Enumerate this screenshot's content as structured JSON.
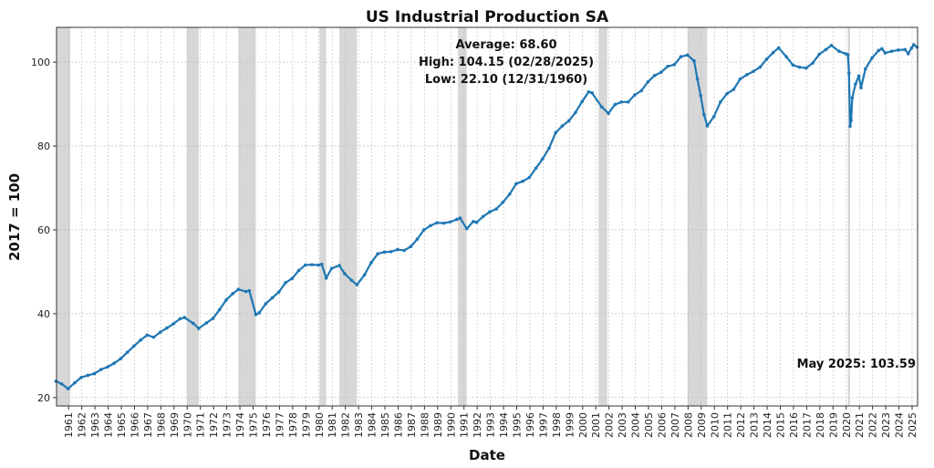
{
  "chart_data": {
    "type": "line",
    "title": "US Industrial Production SA",
    "xlabel": "Date",
    "ylabel": "2017 = 100",
    "xlim": [
      "1960-02",
      "2025-05"
    ],
    "ylim": [
      18.0,
      108.3
    ],
    "grid": true,
    "line_color": "#1f77b4",
    "recession_color": "#d3d3d3",
    "y_ticks": [
      20,
      40,
      60,
      80,
      100
    ],
    "x_ticks": [
      "1961",
      "1962",
      "1963",
      "1964",
      "1965",
      "1966",
      "1967",
      "1968",
      "1969",
      "1970",
      "1971",
      "1972",
      "1973",
      "1974",
      "1975",
      "1976",
      "1977",
      "1978",
      "1979",
      "1980",
      "1981",
      "1982",
      "1983",
      "1984",
      "1985",
      "1986",
      "1987",
      "1988",
      "1989",
      "1990",
      "1991",
      "1992",
      "1993",
      "1994",
      "1995",
      "1996",
      "1997",
      "1998",
      "1999",
      "2000",
      "2001",
      "2002",
      "2003",
      "2004",
      "2005",
      "2006",
      "2007",
      "2008",
      "2009",
      "2010",
      "2011",
      "2012",
      "2013",
      "2014",
      "2015",
      "2016",
      "2017",
      "2018",
      "2019",
      "2020",
      "2021",
      "2022",
      "2023",
      "2024",
      "2025"
    ],
    "annotations": {
      "average": "Average: 68.60",
      "high": "High: 104.15 (02/28/2025)",
      "low": "Low: 22.10 (12/31/1960)",
      "latest": "May 2025: 103.59"
    },
    "recessions": [
      [
        "1960-02",
        "1961-02"
      ],
      [
        "1969-12",
        "1970-11"
      ],
      [
        "1973-11",
        "1975-03"
      ],
      [
        "1980-01",
        "1980-07"
      ],
      [
        "1981-07",
        "1982-11"
      ],
      [
        "1990-07",
        "1991-03"
      ],
      [
        "2001-03",
        "2001-11"
      ],
      [
        "2007-12",
        "2009-06"
      ],
      [
        "2020-02",
        "2020-04"
      ]
    ],
    "series": [
      {
        "x": [
          "1960-01",
          "1960-06",
          "1960-12",
          "1961-06",
          "1961-12",
          "1962-06",
          "1962-12",
          "1963-06",
          "1963-12",
          "1964-06",
          "1964-12",
          "1965-06",
          "1965-12",
          "1966-06",
          "1966-12",
          "1967-06",
          "1967-12",
          "1968-06",
          "1968-12",
          "1969-06",
          "1969-10",
          "1970-06",
          "1970-11",
          "1971-06",
          "1971-12",
          "1972-06",
          "1972-12",
          "1973-06",
          "1973-11",
          "1974-06",
          "1974-09",
          "1975-03",
          "1975-06",
          "1975-12",
          "1976-06",
          "1976-12",
          "1977-06",
          "1977-12",
          "1978-06",
          "1978-12",
          "1979-06",
          "1979-12",
          "1980-03",
          "1980-07",
          "1980-12",
          "1981-07",
          "1981-12",
          "1982-06",
          "1982-11",
          "1983-06",
          "1983-12",
          "1984-06",
          "1984-12",
          "1985-06",
          "1985-12",
          "1986-06",
          "1986-12",
          "1987-06",
          "1987-12",
          "1988-06",
          "1988-12",
          "1989-06",
          "1989-12",
          "1990-06",
          "1990-09",
          "1991-03",
          "1991-09",
          "1991-12",
          "1992-06",
          "1992-12",
          "1993-06",
          "1993-12",
          "1994-06",
          "1994-12",
          "1995-06",
          "1995-12",
          "1996-06",
          "1996-12",
          "1997-06",
          "1997-12",
          "1998-06",
          "1998-12",
          "1999-06",
          "1999-12",
          "2000-06",
          "2000-09",
          "2001-06",
          "2001-12",
          "2002-06",
          "2002-12",
          "2003-06",
          "2003-12",
          "2004-06",
          "2004-12",
          "2005-06",
          "2005-12",
          "2006-06",
          "2006-12",
          "2007-06",
          "2007-12",
          "2008-06",
          "2008-09",
          "2008-12",
          "2009-03",
          "2009-06",
          "2009-12",
          "2010-06",
          "2010-12",
          "2011-06",
          "2011-12",
          "2012-06",
          "2012-12",
          "2013-06",
          "2013-12",
          "2014-06",
          "2014-11",
          "2015-06",
          "2015-12",
          "2016-06",
          "2016-12",
          "2017-06",
          "2017-12",
          "2018-06",
          "2018-11",
          "2019-06",
          "2019-12",
          "2020-02",
          "2020-03",
          "2020-04",
          "2020-05",
          "2020-06",
          "2020-09",
          "2020-12",
          "2021-02",
          "2021-06",
          "2021-12",
          "2022-06",
          "2022-09",
          "2022-12",
          "2023-06",
          "2023-12",
          "2024-06",
          "2024-09",
          "2024-12",
          "2025-02",
          "2025-05"
        ],
        "values": [
          23.9,
          23.3,
          22.1,
          23.5,
          24.8,
          25.3,
          25.7,
          26.7,
          27.3,
          28.2,
          29.3,
          30.8,
          32.3,
          33.7,
          34.9,
          34.4,
          35.6,
          36.6,
          37.6,
          38.8,
          39.1,
          37.7,
          36.5,
          37.8,
          38.9,
          41.0,
          43.3,
          44.8,
          45.8,
          45.3,
          45.5,
          39.8,
          40.2,
          42.4,
          43.8,
          45.2,
          47.4,
          48.4,
          50.3,
          51.6,
          51.7,
          51.6,
          51.8,
          48.5,
          50.8,
          51.5,
          49.5,
          48.0,
          46.9,
          49.3,
          52.2,
          54.3,
          54.7,
          54.8,
          55.3,
          55.1,
          56.0,
          57.8,
          60.0,
          61.0,
          61.7,
          61.6,
          61.9,
          62.5,
          62.8,
          60.3,
          62.0,
          61.8,
          63.2,
          64.3,
          65.0,
          66.6,
          68.5,
          71.0,
          71.6,
          72.5,
          74.7,
          76.9,
          79.5,
          83.2,
          84.8,
          86.0,
          88.0,
          90.6,
          92.9,
          92.7,
          89.3,
          87.8,
          89.9,
          90.5,
          90.5,
          92.2,
          93.2,
          95.3,
          96.8,
          97.6,
          99.0,
          99.4,
          101.3,
          101.7,
          100.3,
          96.0,
          92.0,
          87.5,
          84.8,
          87.0,
          90.5,
          92.5,
          93.5,
          96.0,
          97.0,
          97.8,
          98.8,
          100.7,
          102.3,
          103.4,
          101.3,
          99.3,
          98.8,
          98.6,
          99.8,
          101.9,
          103.0,
          104.0,
          102.6,
          102.0,
          101.8,
          97.4,
          84.7,
          86.1,
          91.5,
          94.8,
          96.7,
          93.9,
          98.4,
          101.0,
          102.8,
          103.2,
          102.2,
          102.6,
          102.9,
          103.0,
          102.0,
          103.4,
          104.15,
          103.59
        ]
      }
    ]
  }
}
